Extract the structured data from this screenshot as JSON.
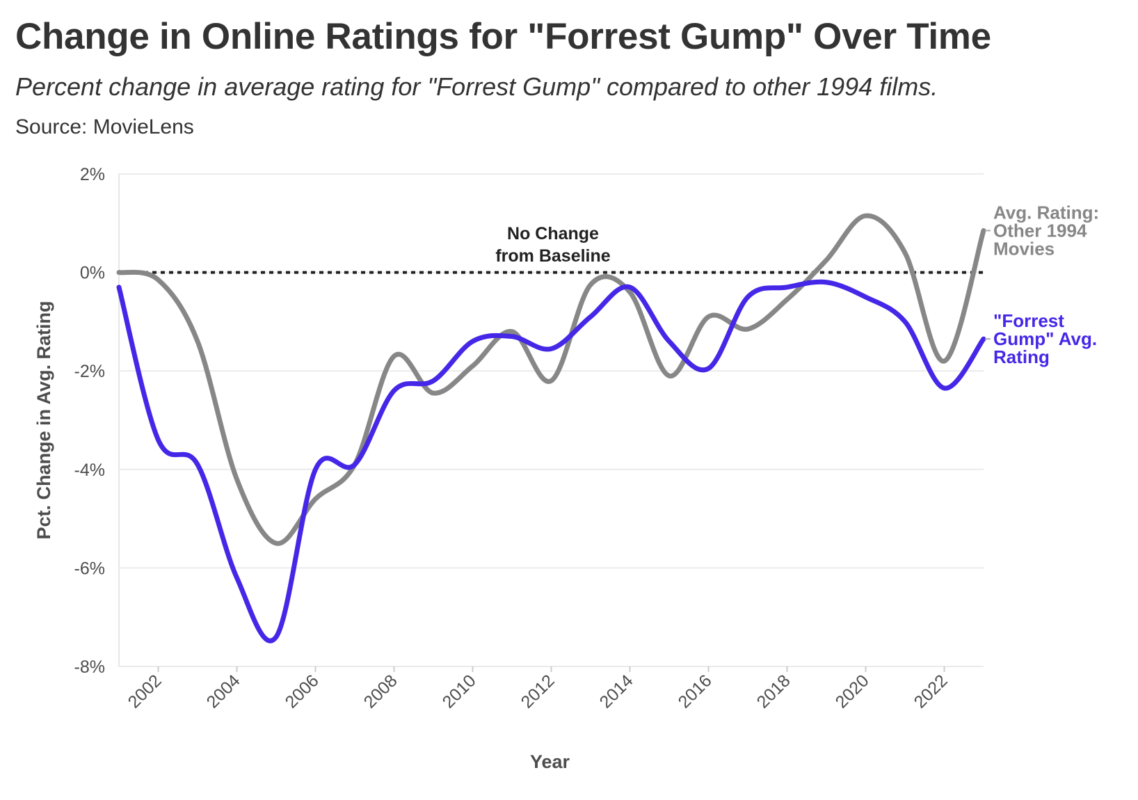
{
  "header": {
    "title": "Change in Online Ratings for \"Forrest Gump\" Over Time",
    "subtitle": "Percent change in average rating for \"Forrest Gump\" compared to other 1994 films.",
    "source": "Source: MovieLens"
  },
  "chart_data": {
    "type": "line",
    "xlabel": "Year",
    "ylabel": "Pct. Change in Avg. Rating",
    "xlim": [
      2001,
      2023
    ],
    "ylim": [
      -8,
      2
    ],
    "x_ticks": [
      2002,
      2004,
      2006,
      2008,
      2010,
      2012,
      2014,
      2016,
      2018,
      2020,
      2022
    ],
    "x_tick_labels": [
      "2002",
      "2004",
      "2006",
      "2008",
      "2010",
      "2012",
      "2014",
      "2016",
      "2018",
      "2020",
      "2022"
    ],
    "y_ticks": [
      -8,
      -6,
      -4,
      -2,
      0,
      2
    ],
    "y_tick_labels": [
      "-8%",
      "-6%",
      "-4%",
      "-2%",
      "0%",
      "2%"
    ],
    "grid": true,
    "x": [
      2001,
      2002,
      2003,
      2004,
      2005,
      2006,
      2007,
      2008,
      2009,
      2010,
      2011,
      2012,
      2013,
      2014,
      2015,
      2016,
      2017,
      2018,
      2019,
      2020,
      2021,
      2022,
      2023
    ],
    "series": [
      {
        "name": "\"Forrest Gump\" Avg. Rating",
        "color": "#4527e8",
        "values": [
          -0.3,
          -3.4,
          -3.9,
          -6.2,
          -7.4,
          -4.0,
          -3.9,
          -2.4,
          -2.2,
          -1.4,
          -1.3,
          -1.55,
          -0.9,
          -0.3,
          -1.4,
          -1.95,
          -0.5,
          -0.3,
          -0.2,
          -0.5,
          -1.0,
          -2.35,
          -1.35
        ]
      },
      {
        "name": "Avg. Rating: Other 1994 Movies",
        "color": "#878787",
        "values": [
          0.0,
          -0.15,
          -1.4,
          -4.2,
          -5.5,
          -4.6,
          -3.9,
          -1.7,
          -2.45,
          -1.9,
          -1.2,
          -2.2,
          -0.25,
          -0.4,
          -2.1,
          -0.9,
          -1.15,
          -0.55,
          0.25,
          1.15,
          0.4,
          -1.8,
          0.85
        ]
      }
    ],
    "reference_line": {
      "y": 0,
      "style": "dotted",
      "color": "#222222",
      "label_lines": [
        "No Change",
        "from Baseline"
      ]
    },
    "series_label_lines": [
      [
        "\"Forrest",
        "Gump\" Avg.",
        "Rating"
      ],
      [
        "Avg. Rating:",
        "Other 1994",
        "Movies"
      ]
    ]
  }
}
